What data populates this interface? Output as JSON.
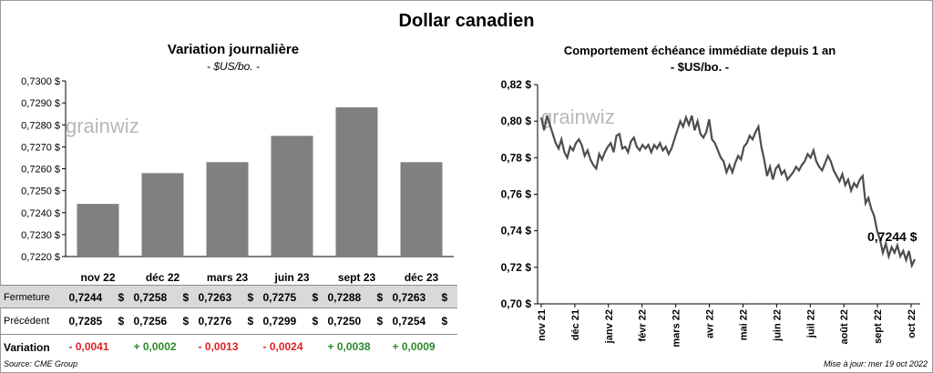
{
  "title": "Dollar canadien",
  "left": {
    "title": "Variation  journalière",
    "subtitle": "- $US/bo. -",
    "row_labels": {
      "close": "Fermeture",
      "previous": "Précédent",
      "change": "Variation"
    },
    "currency_symbol": "$"
  },
  "right": {
    "title": "Comportement échéance immédiate depuis 1 an",
    "subtitle": "- $US/bo. -",
    "last_label": "0,7244 $"
  },
  "watermark": "grainwiz",
  "source": "Source: CME Group",
  "updated": "Mise à jour: mer 19 oct 2022",
  "colors": {
    "bar": "#808080",
    "line": "#4d4d4d",
    "negative": "#e02020",
    "positive": "#2a8a2a"
  },
  "chart_data": [
    {
      "type": "bar",
      "title": "Variation  journalière",
      "subtitle": "- $US/bo. -",
      "categories": [
        "nov 22",
        "déc 22",
        "mars 23",
        "juin 23",
        "sept 23",
        "déc 23"
      ],
      "series": [
        {
          "values": [
            0.7244,
            0.7258,
            0.7263,
            0.7275,
            0.7288,
            0.7263
          ]
        }
      ],
      "ylim": [
        0.722,
        0.73
      ],
      "yticks": [
        "0,7220 $",
        "0,7230 $",
        "0,7240 $",
        "0,7250 $",
        "0,7260 $",
        "0,7270 $",
        "0,7280 $",
        "0,7290 $",
        "0,7300 $"
      ],
      "table": {
        "close": [
          "0,7244",
          "0,7258",
          "0,7263",
          "0,7275",
          "0,7288",
          "0,7263"
        ],
        "previous": [
          "0,7285",
          "0,7256",
          "0,7276",
          "0,7299",
          "0,7250",
          "0,7254"
        ],
        "change": [
          "- 0,0041",
          "+ 0,0002",
          "- 0,0013",
          "- 0,0024",
          "+ 0,0038",
          "+ 0,0009"
        ],
        "change_sign": [
          -1,
          1,
          -1,
          -1,
          1,
          1
        ]
      }
    },
    {
      "type": "line",
      "title": "Comportement échéance immédiate depuis 1 an",
      "subtitle": "- $US/bo. -",
      "x_labels": [
        "nov 21",
        "déc 21",
        "janv 22",
        "févr 22",
        "mars 22",
        "avr 22",
        "mai 22",
        "juin 22",
        "juil 22",
        "août 22",
        "sept 22",
        "oct 22"
      ],
      "ylim": [
        0.7,
        0.82
      ],
      "yticks": [
        "0,70 $",
        "0,72 $",
        "0,74 $",
        "0,76 $",
        "0,78 $",
        "0,80 $",
        "0,82 $"
      ],
      "series": [
        {
          "values": [
            0.802,
            0.795,
            0.803,
            0.798,
            0.793,
            0.788,
            0.785,
            0.79,
            0.783,
            0.78,
            0.786,
            0.784,
            0.788,
            0.79,
            0.787,
            0.781,
            0.784,
            0.779,
            0.776,
            0.774,
            0.782,
            0.779,
            0.783,
            0.786,
            0.788,
            0.783,
            0.792,
            0.793,
            0.785,
            0.786,
            0.783,
            0.789,
            0.791,
            0.786,
            0.784,
            0.787,
            0.785,
            0.787,
            0.783,
            0.787,
            0.785,
            0.788,
            0.784,
            0.786,
            0.782,
            0.785,
            0.79,
            0.795,
            0.8,
            0.797,
            0.802,
            0.798,
            0.803,
            0.795,
            0.8,
            0.793,
            0.791,
            0.794,
            0.801,
            0.79,
            0.788,
            0.784,
            0.78,
            0.778,
            0.772,
            0.776,
            0.772,
            0.777,
            0.781,
            0.779,
            0.786,
            0.788,
            0.792,
            0.79,
            0.794,
            0.797,
            0.786,
            0.779,
            0.77,
            0.775,
            0.768,
            0.774,
            0.776,
            0.771,
            0.773,
            0.768,
            0.77,
            0.772,
            0.775,
            0.773,
            0.776,
            0.778,
            0.782,
            0.78,
            0.784,
            0.778,
            0.775,
            0.773,
            0.777,
            0.781,
            0.778,
            0.773,
            0.77,
            0.767,
            0.771,
            0.765,
            0.768,
            0.762,
            0.766,
            0.764,
            0.768,
            0.77,
            0.755,
            0.758,
            0.752,
            0.748,
            0.74,
            0.735,
            0.728,
            0.733,
            0.726,
            0.731,
            0.728,
            0.732,
            0.726,
            0.729,
            0.724,
            0.729,
            0.721,
            0.7244
          ]
        }
      ]
    }
  ]
}
